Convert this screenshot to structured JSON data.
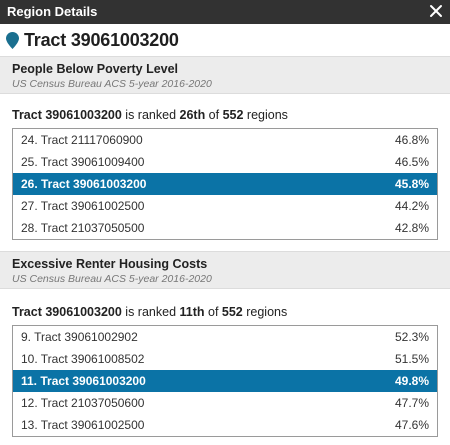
{
  "window": {
    "title": "Region Details"
  },
  "region": {
    "name": "Tract 39061003200"
  },
  "sections": [
    {
      "title": "People Below Poverty Level",
      "source": "US Census Bureau ACS 5-year 2016-2020",
      "rank_prefix": "Tract 39061003200",
      "rank_mid1": " is ranked ",
      "rank_value": "26th",
      "rank_mid2": " of ",
      "rank_total": "552",
      "rank_suffix": " regions",
      "rows": [
        {
          "name": "24. Tract 21117060900",
          "value": "46.8%"
        },
        {
          "name": "25. Tract 39061009400",
          "value": "46.5%"
        },
        {
          "name": "26. Tract 39061003200",
          "value": "45.8%"
        },
        {
          "name": "27. Tract 39061002500",
          "value": "44.2%"
        },
        {
          "name": "28. Tract 21037050500",
          "value": "42.8%"
        }
      ]
    },
    {
      "title": "Excessive Renter Housing Costs",
      "source": "US Census Bureau ACS 5-year 2016-2020",
      "rank_prefix": "Tract 39061003200",
      "rank_mid1": " is ranked ",
      "rank_value": "11th",
      "rank_mid2": " of ",
      "rank_total": "552",
      "rank_suffix": " regions",
      "rows": [
        {
          "name": "9. Tract 39061002902",
          "value": "52.3%"
        },
        {
          "name": "10. Tract 39061008502",
          "value": "51.5%"
        },
        {
          "name": "11. Tract 39061003200",
          "value": "49.8%"
        },
        {
          "name": "12. Tract 21037050600",
          "value": "47.7%"
        },
        {
          "name": "13. Tract 39061002500",
          "value": "47.6%"
        }
      ]
    }
  ],
  "colors": {
    "titlebar": "#323232",
    "selected_row": "#0b73a6",
    "pin": "#1a6f8f",
    "section_bg": "#ececec"
  },
  "icons": {
    "close": "close-icon",
    "pin": "map-pin-icon"
  }
}
